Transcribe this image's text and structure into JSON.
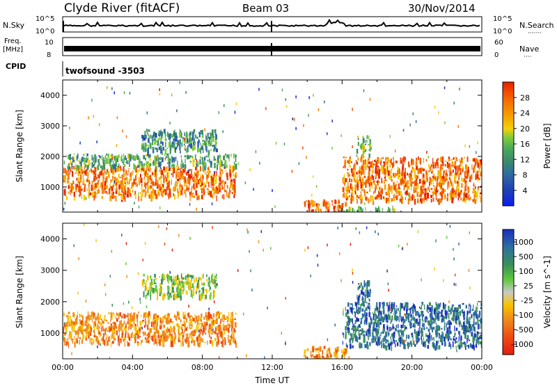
{
  "header": {
    "station": "Clyde River (fitACF)",
    "beam": "Beam 03",
    "date": "30/Nov/2014"
  },
  "top_panels": {
    "nsky_label": "N.Sky",
    "nsearch_label": "N.Search",
    "nsearch_dots": "·······",
    "exp_top": "10^5",
    "exp_bottom": "10^0",
    "freq_label_1": "Freq.",
    "freq_label_2": "[MHz]",
    "freq_top": "10",
    "freq_bottom": "8",
    "nave_label": "Nave",
    "nave_dots": "····",
    "nave_top": "60",
    "nave_bottom": "0",
    "cpid_label": "CPID",
    "cpid_value": "twofsound -3503"
  },
  "chart_data": [
    {
      "type": "heatmap",
      "title": "",
      "xlabel": "",
      "ylabel": "Slant Range [km]",
      "xlim": [
        "00:00",
        "24:00"
      ],
      "ylim": [
        180,
        4500
      ],
      "yticks": [
        1000,
        2000,
        3000,
        4000
      ],
      "colorbar": {
        "label": "Power [dB]",
        "range": [
          0,
          32
        ],
        "ticks": [
          4,
          8,
          12,
          16,
          20,
          24,
          28
        ],
        "colors": [
          "#0b1ff2",
          "#1c3fb6",
          "#2f6aa2",
          "#3c8a6a",
          "#4aa85a",
          "#7ccc3a",
          "#f4d00a",
          "#f7a200",
          "#f77a00",
          "#f24a00",
          "#e81e00"
        ]
      },
      "regions": [
        {
          "t": [
            0.0,
            9.9
          ],
          "r": [
            700,
            1700
          ],
          "level": 26
        },
        {
          "t": [
            0.0,
            9.9
          ],
          "r": [
            1700,
            2100
          ],
          "level": 12
        },
        {
          "t": [
            4.5,
            8.8
          ],
          "r": [
            2200,
            2900
          ],
          "level": 10
        },
        {
          "t": [
            13.8,
            16.2
          ],
          "r": [
            180,
            600
          ],
          "level": 28
        },
        {
          "t": [
            15.8,
            19.0
          ],
          "r": [
            180,
            380
          ],
          "level": 12
        },
        {
          "t": [
            16.0,
            24.0
          ],
          "r": [
            600,
            2000
          ],
          "level": 26
        },
        {
          "t": [
            16.8,
            17.6
          ],
          "r": [
            2000,
            2700
          ],
          "level": 16
        }
      ]
    },
    {
      "type": "heatmap",
      "title": "",
      "xlabel": "Time UT",
      "ylabel": "Slant Range [km]",
      "xlim": [
        "00:00",
        "24:00"
      ],
      "ylim": [
        180,
        4500
      ],
      "xticks": [
        "00:00",
        "04:00",
        "08:00",
        "12:00",
        "16:00",
        "20:00",
        "00:00"
      ],
      "yticks": [
        1000,
        2000,
        3000,
        4000
      ],
      "colorbar": {
        "label": "Velocity [m s^-1]",
        "ticks": [
          "1000",
          "500",
          "100",
          "25",
          "-25",
          "-100",
          "-500",
          "-1000"
        ],
        "colors": [
          "#1a2fbd",
          "#2d6fa0",
          "#3a8f5a",
          "#5ec83c",
          "#c8c8c8",
          "#f7c400",
          "#f08a1a",
          "#f04a10",
          "#e61e10"
        ]
      },
      "regions": [
        {
          "t": [
            0.0,
            9.9
          ],
          "r": [
            700,
            1700
          ],
          "level": "-100"
        },
        {
          "t": [
            4.5,
            8.8
          ],
          "r": [
            2200,
            2900
          ],
          "level": "25"
        },
        {
          "t": [
            13.8,
            16.2
          ],
          "r": [
            180,
            600
          ],
          "level": "-100"
        },
        {
          "t": [
            16.0,
            24.0
          ],
          "r": [
            600,
            2000
          ],
          "level": "500"
        },
        {
          "t": [
            16.8,
            17.6
          ],
          "r": [
            2000,
            2700
          ],
          "level": "500"
        }
      ]
    }
  ]
}
